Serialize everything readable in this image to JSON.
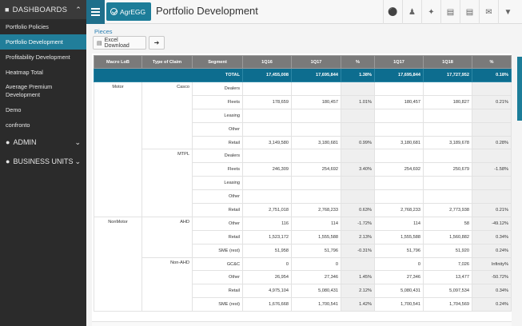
{
  "sidebar": {
    "header": "DASHBOARDS",
    "items": [
      {
        "label": "Portfolio Policies",
        "active": false
      },
      {
        "label": "Portfolio Development",
        "active": true
      },
      {
        "label": "Profitability Development",
        "active": false
      },
      {
        "label": "Heatmap Total",
        "active": false
      },
      {
        "label": "Average Premium Development",
        "active": false
      },
      {
        "label": "Demo",
        "active": false
      },
      {
        "label": "confronto",
        "active": false
      }
    ],
    "groups": [
      {
        "label": "ADMIN",
        "icon": "users-icon"
      },
      {
        "label": "BUSINESS UNITS",
        "icon": "globe-icon"
      }
    ]
  },
  "topbar": {
    "logo_text": "AgrEGG",
    "title": "Portfolio Development",
    "tools": [
      "comment-icon",
      "user-icon",
      "share-icon",
      "pdf-icon",
      "document-icon",
      "mail-icon",
      "filter-icon"
    ]
  },
  "content": {
    "breadcrumb": "Pieces",
    "excel_button": "Excel Download",
    "share_button_icon": "share-arrow-icon"
  },
  "table": {
    "headers": [
      "Macro LoB",
      "Type of Claim",
      "Segment",
      "1Q16",
      "1Q17",
      "%",
      "1Q17",
      "1Q18",
      "%"
    ],
    "total": {
      "label": "TOTAL",
      "values": [
        "17,455,008",
        "17,695,844",
        "1.38%",
        "17,695,844",
        "17,727,952",
        "0.18%"
      ]
    },
    "rows": [
      {
        "macro": "Motor",
        "claim": "Casco",
        "seg": "Dealers",
        "v": [
          "",
          "",
          "",
          "",
          "",
          ""
        ]
      },
      {
        "macro": "",
        "claim": "",
        "seg": "Fleets",
        "v": [
          "178,659",
          "180,457",
          "1.01%",
          "180,457",
          "180,827",
          "0.21%"
        ]
      },
      {
        "macro": "",
        "claim": "",
        "seg": "Leasing",
        "v": [
          "",
          "",
          "",
          "",
          "",
          ""
        ]
      },
      {
        "macro": "",
        "claim": "",
        "seg": "Other",
        "v": [
          "",
          "",
          "",
          "",
          "",
          ""
        ]
      },
      {
        "macro": "",
        "claim": "",
        "seg": "Retail",
        "v": [
          "3,149,580",
          "3,180,681",
          "0.99%",
          "3,180,681",
          "3,189,678",
          "0.28%"
        ]
      },
      {
        "macro": "",
        "claim": "MTPL",
        "seg": "Dealers",
        "v": [
          "",
          "",
          "",
          "",
          "",
          ""
        ]
      },
      {
        "macro": "",
        "claim": "",
        "seg": "Fleets",
        "v": [
          "246,309",
          "254,692",
          "3.40%",
          "254,692",
          "250,679",
          "-1.58%"
        ]
      },
      {
        "macro": "",
        "claim": "",
        "seg": "Leasing",
        "v": [
          "",
          "",
          "",
          "",
          "",
          ""
        ]
      },
      {
        "macro": "",
        "claim": "",
        "seg": "Other",
        "v": [
          "",
          "",
          "",
          "",
          "",
          ""
        ]
      },
      {
        "macro": "",
        "claim": "",
        "seg": "Retail",
        "v": [
          "2,751,018",
          "2,768,233",
          "0.63%",
          "2,768,233",
          "2,773,938",
          "0.21%"
        ]
      },
      {
        "macro": "NonMotor",
        "claim": "AHD",
        "seg": "Other",
        "v": [
          "116",
          "114",
          "-1.72%",
          "114",
          "58",
          "-49.12%"
        ]
      },
      {
        "macro": "",
        "claim": "",
        "seg": "Retail",
        "v": [
          "1,523,172",
          "1,555,588",
          "2.13%",
          "1,555,588",
          "1,560,882",
          "0.34%"
        ]
      },
      {
        "macro": "",
        "claim": "",
        "seg": "SME (rest)",
        "v": [
          "51,958",
          "51,796",
          "-0.31%",
          "51,796",
          "51,920",
          "0.24%"
        ]
      },
      {
        "macro": "",
        "claim": "Non-AHD",
        "seg": "GC&C",
        "v": [
          "0",
          "0",
          "",
          "0",
          "7,026",
          "Infinity%"
        ]
      },
      {
        "macro": "",
        "claim": "",
        "seg": "Other",
        "v": [
          "26,954",
          "27,346",
          "1.45%",
          "27,346",
          "13,477",
          "-50.72%"
        ]
      },
      {
        "macro": "",
        "claim": "",
        "seg": "Retail",
        "v": [
          "4,975,104",
          "5,080,431",
          "2.12%",
          "5,080,431",
          "5,097,534",
          "0.34%"
        ]
      },
      {
        "macro": "",
        "claim": "",
        "seg": "SME (rest)",
        "v": [
          "1,676,668",
          "1,700,541",
          "1.42%",
          "1,700,541",
          "1,704,569",
          "0.24%"
        ]
      }
    ]
  },
  "colors": {
    "sidebar_bg": "#2b2b2b",
    "accent": "#1c7d99",
    "active_item": "#217e9a",
    "header_grey": "#7a7a7a",
    "total_row": "#0d6d8f"
  }
}
